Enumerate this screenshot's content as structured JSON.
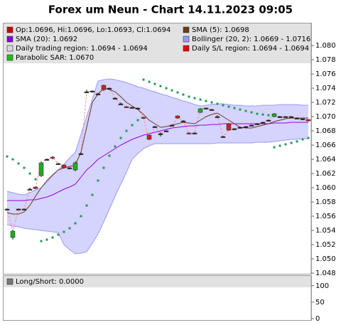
{
  "chart_data": [
    {
      "type": "candlestick",
      "title": "Forex um Neun - Chart 14.11.2023 09:05",
      "ylim": [
        1.0479,
        1.0831
      ],
      "yticks": [
        1.048,
        {
          "value": 1.05,
          "label": "1.050"
        },
        1.052,
        1.054,
        1.056,
        1.058,
        {
          "value": 1.06,
          "label": "1.060"
        },
        1.062,
        1.064,
        1.066,
        1.068,
        {
          "value": 1.07,
          "label": "1.070"
        },
        1.072,
        1.074,
        1.076,
        1.078,
        {
          "value": 1.08,
          "label": "1.080"
        }
      ],
      "legend": [
        {
          "label": "Op:1.0696, Hi:1.0696, Lo:1.0693, Cl:1.0694",
          "color": "#cc0000"
        },
        {
          "label": "SMA (5): 1.0698",
          "color": "#6b3a1e"
        },
        {
          "label": "SMA (20): 1.0692",
          "color": "#8800cc"
        },
        {
          "label": "Bollinger (20, 2): 1.0669 - 1.0716",
          "color": "#9999ff"
        },
        {
          "label": "Daily trading region: 1.0694 - 1.0694",
          "color": "#d8d8d8"
        },
        {
          "label": "Daily S/L region: 1.0694 - 1.0694",
          "color": "#ee0000"
        },
        {
          "label": "Parabolic SAR: 1.0670",
          "color": "#22bb22"
        }
      ],
      "up_color": "#22aa22",
      "down_color": "#cc2222",
      "flat_color": "#222222",
      "open": [
        1.057,
        1.053,
        1.057,
        1.057,
        1.0598,
        1.0601,
        1.0617,
        1.064,
        1.0643,
        1.0634,
        1.0632,
        1.0628,
        1.0625,
        1.0648,
        1.0735,
        1.0736,
        1.0732,
        1.0744,
        1.074,
        1.0726,
        1.0718,
        1.0714,
        1.0713,
        1.0712,
        1.0699,
        1.0674,
        1.0686,
        1.0676,
        1.068,
        1.0688,
        1.0701,
        1.0694,
        1.0677,
        1.0677,
        1.0706,
        1.0712,
        1.071,
        1.07,
        1.0672,
        1.069,
        1.0683,
        1.0685,
        1.0686,
        1.0688,
        1.069,
        1.0692,
        1.0695,
        1.07,
        1.07,
        1.07,
        1.07,
        1.0698,
        1.0697,
        1.0696
      ],
      "high": [
        1.0571,
        1.0541,
        1.0571,
        1.0571,
        1.06,
        1.0602,
        1.0637,
        1.0641,
        1.0645,
        1.0635,
        1.0633,
        1.0629,
        1.0637,
        1.065,
        1.0738,
        1.0737,
        1.0733,
        1.0745,
        1.0741,
        1.0727,
        1.072,
        1.0715,
        1.0714,
        1.0713,
        1.07,
        1.0675,
        1.0687,
        1.0678,
        1.0681,
        1.0689,
        1.0702,
        1.0695,
        1.0678,
        1.0678,
        1.0712,
        1.0713,
        1.0711,
        1.0702,
        1.0673,
        1.0691,
        1.0684,
        1.0686,
        1.0687,
        1.0689,
        1.0691,
        1.0693,
        1.0696,
        1.0705,
        1.0701,
        1.0701,
        1.0701,
        1.0699,
        1.0698,
        1.0696
      ],
      "low": [
        1.0569,
        1.0527,
        1.0569,
        1.0569,
        1.0597,
        1.0598,
        1.0615,
        1.0638,
        1.064,
        1.0633,
        1.0627,
        1.0626,
        1.0623,
        1.0646,
        1.0733,
        1.0734,
        1.073,
        1.0736,
        1.0739,
        1.0724,
        1.0717,
        1.0712,
        1.0712,
        1.071,
        1.0697,
        1.0667,
        1.0684,
        1.0672,
        1.0679,
        1.0687,
        1.0697,
        1.0693,
        1.0675,
        1.0676,
        1.0705,
        1.0711,
        1.0709,
        1.0699,
        1.0671,
        1.068,
        1.0682,
        1.0684,
        1.0685,
        1.0687,
        1.0689,
        1.0691,
        1.0694,
        1.0699,
        1.0699,
        1.0699,
        1.0699,
        1.0697,
        1.0696,
        1.0693
      ],
      "close": [
        1.057,
        1.0539,
        1.057,
        1.057,
        1.0598,
        1.0599,
        1.0635,
        1.064,
        1.0642,
        1.0634,
        1.0628,
        1.0628,
        1.0635,
        1.0648,
        1.0735,
        1.0736,
        1.0732,
        1.0738,
        1.074,
        1.0726,
        1.0718,
        1.0713,
        1.0713,
        1.0712,
        1.0698,
        1.0668,
        1.0686,
        1.0676,
        1.068,
        1.0688,
        1.0698,
        1.0694,
        1.0676,
        1.0677,
        1.0711,
        1.0712,
        1.071,
        1.07,
        1.0672,
        1.0681,
        1.0683,
        1.0685,
        1.0686,
        1.0688,
        1.069,
        1.0692,
        1.0695,
        1.0704,
        1.07,
        1.07,
        1.07,
        1.0698,
        1.0697,
        1.0694
      ],
      "close_line_color": "#ff8899",
      "sma5": [
        1.0565,
        1.0563,
        1.0563,
        1.0566,
        1.0575,
        1.0588,
        1.06,
        1.061,
        1.0618,
        1.0625,
        1.0628,
        1.063,
        1.0632,
        1.065,
        1.0685,
        1.072,
        1.0732,
        1.074,
        1.0738,
        1.0735,
        1.0728,
        1.072,
        1.0715,
        1.071,
        1.0703,
        1.0695,
        1.069,
        1.0685,
        1.0686,
        1.0688,
        1.069,
        1.0692,
        1.0691,
        1.069,
        1.0695,
        1.07,
        1.0703,
        1.0705,
        1.07,
        1.0695,
        1.069,
        1.0685,
        1.0684,
        1.0684,
        1.0686,
        1.0688,
        1.069,
        1.0693,
        1.0695,
        1.0697,
        1.0698,
        1.0698,
        1.0698,
        1.0698
      ],
      "sma20": [
        1.0582,
        1.0582,
        1.0582,
        1.0582,
        1.0583,
        1.0583,
        1.0585,
        1.0587,
        1.059,
        1.0594,
        1.0598,
        1.0601,
        1.0605,
        1.0615,
        1.0625,
        1.0632,
        1.064,
        1.0645,
        1.065,
        1.0655,
        1.066,
        1.0664,
        1.0668,
        1.0671,
        1.0674,
        1.0676,
        1.0678,
        1.068,
        1.0682,
        1.0684,
        1.0685,
        1.0686,
        1.0687,
        1.0687,
        1.0688,
        1.0688,
        1.0689,
        1.0689,
        1.069,
        1.069,
        1.069,
        1.069,
        1.069,
        1.069,
        1.069,
        1.069,
        1.069,
        1.0691,
        1.0691,
        1.0691,
        1.0692,
        1.0692,
        1.0692,
        1.0692
      ],
      "boll_upper": [
        1.0595,
        1.0593,
        1.0591,
        1.059,
        1.0593,
        1.0597,
        1.06,
        1.0608,
        1.0617,
        1.0625,
        1.0633,
        1.0642,
        1.065,
        1.0675,
        1.07,
        1.0725,
        1.075,
        1.0752,
        1.0753,
        1.0752,
        1.075,
        1.0748,
        1.0745,
        1.0742,
        1.074,
        1.0737,
        1.0735,
        1.0732,
        1.073,
        1.0727,
        1.0725,
        1.0722,
        1.072,
        1.0717,
        1.0715,
        1.0716,
        1.0717,
        1.0718,
        1.0718,
        1.0717,
        1.0716,
        1.0716,
        1.0715,
        1.0715,
        1.0715,
        1.0716,
        1.0716,
        1.0716,
        1.0717,
        1.0717,
        1.0717,
        1.0717,
        1.0716,
        1.0716
      ],
      "boll_lower": [
        1.0548,
        1.0546,
        1.0545,
        1.0543,
        1.0542,
        1.0541,
        1.054,
        1.0539,
        1.0538,
        1.0537,
        1.052,
        1.0513,
        1.0507,
        1.0508,
        1.051,
        1.0522,
        1.0535,
        1.0552,
        1.057,
        1.0588,
        1.0605,
        1.0622,
        1.064,
        1.0648,
        1.0655,
        1.0659,
        1.0662,
        1.0662,
        1.0662,
        1.0662,
        1.0662,
        1.0662,
        1.0662,
        1.0662,
        1.0662,
        1.0662,
        1.0662,
        1.0663,
        1.0663,
        1.0663,
        1.0663,
        1.0663,
        1.0663,
        1.0663,
        1.0664,
        1.0664,
        1.0664,
        1.0665,
        1.0666,
        1.0667,
        1.0668,
        1.0668,
        1.0669,
        1.0669
      ],
      "sar": [
        1.0644,
        1.064,
        1.0634,
        1.0628,
        1.062,
        1.0612,
        1.0525,
        1.0527,
        1.053,
        1.0534,
        1.0538,
        1.0543,
        1.055,
        1.056,
        1.0575,
        1.059,
        1.061,
        1.0628,
        1.0645,
        1.0658,
        1.067,
        1.068,
        1.0688,
        1.0695,
        1.0752,
        1.0749,
        1.0746,
        1.0743,
        1.074,
        1.0737,
        1.0734,
        1.0731,
        1.0728,
        1.0726,
        1.0724,
        1.0722,
        1.072,
        1.0718,
        1.0716,
        1.0714,
        1.0712,
        1.071,
        1.0708,
        1.0706,
        1.0704,
        1.0703,
        1.0702,
        1.0657,
        1.0659,
        1.0661,
        1.0663,
        1.0665,
        1.0668,
        1.067
      ],
      "sma5_color": "#6b3a1e",
      "sma20_color": "#9900dd",
      "band_color": "#ccccff",
      "band_line_color": "#9999ff",
      "sar_color": "#229955"
    },
    {
      "type": "indicator",
      "legend": [
        {
          "label": "Long/Short: 0.0000",
          "color": "#777777"
        }
      ],
      "ylim": [
        0,
        130
      ],
      "yticks": [
        0,
        50,
        100
      ]
    }
  ]
}
